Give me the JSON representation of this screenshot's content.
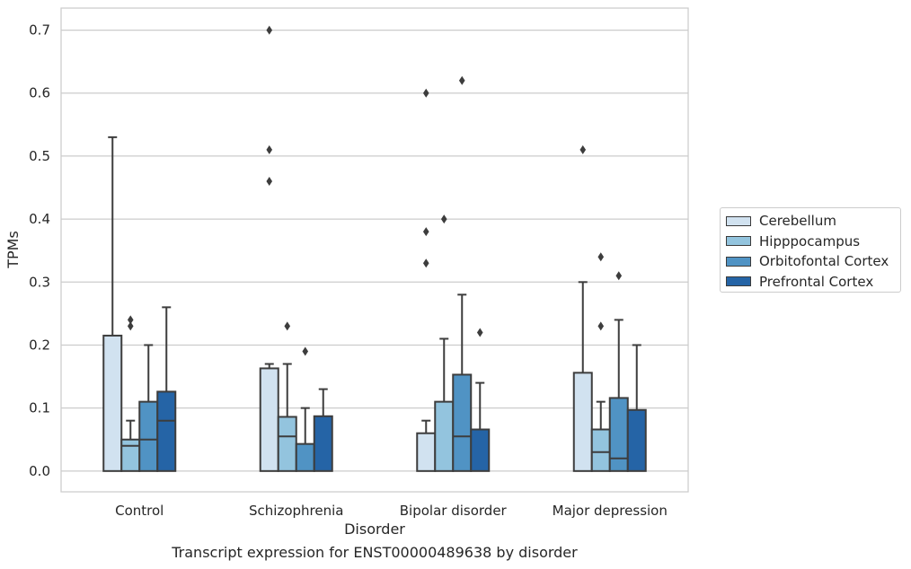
{
  "caption": "Transcript expression for ENST00000489638 by disorder",
  "chart_data": {
    "type": "box",
    "xlabel": "Disorder",
    "ylabel": "TPMs",
    "ylim": [
      -0.033,
      0.735
    ],
    "yticks": [
      "0.0",
      "0.1",
      "0.2",
      "0.3",
      "0.4",
      "0.5",
      "0.6",
      "0.7"
    ],
    "ytick_values": [
      0,
      0.1,
      0.2,
      0.3,
      0.4,
      0.5,
      0.6,
      0.7
    ],
    "grid": "horizontal",
    "legend_position": "right",
    "categories": [
      "Control",
      "Schizophrenia",
      "Bipolar disorder",
      "Major depression"
    ],
    "series": [
      {
        "name": "Cerebellum",
        "color": "#d1e2f0",
        "boxes": [
          {
            "whislo": 0,
            "q1": 0,
            "med": 0,
            "q3": 0.215,
            "whishi": 0.53,
            "fliers": []
          },
          {
            "whislo": 0,
            "q1": 0,
            "med": 0,
            "q3": 0.163,
            "whishi": 0.17,
            "fliers": [
              0.46,
              0.51,
              0.7
            ]
          },
          {
            "whislo": 0,
            "q1": 0,
            "med": 0,
            "q3": 0.06,
            "whishi": 0.08,
            "fliers": [
              0.33,
              0.38,
              0.6
            ]
          },
          {
            "whislo": 0,
            "q1": 0,
            "med": 0,
            "q3": 0.156,
            "whishi": 0.3,
            "fliers": [
              0.51
            ]
          }
        ]
      },
      {
        "name": "Hipppocampus",
        "color": "#93c4de",
        "boxes": [
          {
            "whislo": 0,
            "q1": 0,
            "med": 0.04,
            "q3": 0.05,
            "whishi": 0.08,
            "fliers": [
              0.23,
              0.24
            ]
          },
          {
            "whislo": 0,
            "q1": 0,
            "med": 0.055,
            "q3": 0.086,
            "whishi": 0.17,
            "fliers": [
              0.23
            ]
          },
          {
            "whislo": 0,
            "q1": 0,
            "med": 0,
            "q3": 0.11,
            "whishi": 0.21,
            "fliers": [
              0.4
            ]
          },
          {
            "whislo": 0,
            "q1": 0,
            "med": 0.03,
            "q3": 0.066,
            "whishi": 0.11,
            "fliers": [
              0.23,
              0.34
            ]
          }
        ]
      },
      {
        "name": "Orbitofontal Cortex",
        "color": "#5093c4",
        "boxes": [
          {
            "whislo": 0,
            "q1": 0,
            "med": 0.05,
            "q3": 0.11,
            "whishi": 0.2,
            "fliers": []
          },
          {
            "whislo": 0,
            "q1": 0,
            "med": 0,
            "q3": 0.043,
            "whishi": 0.1,
            "fliers": [
              0.19
            ]
          },
          {
            "whislo": 0,
            "q1": 0,
            "med": 0.055,
            "q3": 0.153,
            "whishi": 0.28,
            "fliers": [
              0.62
            ]
          },
          {
            "whislo": 0,
            "q1": 0,
            "med": 0.02,
            "q3": 0.116,
            "whishi": 0.24,
            "fliers": [
              0.31
            ]
          }
        ]
      },
      {
        "name": "Prefrontal Cortex",
        "color": "#2564a6",
        "boxes": [
          {
            "whislo": 0,
            "q1": 0,
            "med": 0.08,
            "q3": 0.126,
            "whishi": 0.26,
            "fliers": []
          },
          {
            "whislo": 0,
            "q1": 0,
            "med": 0,
            "q3": 0.087,
            "whishi": 0.13,
            "fliers": []
          },
          {
            "whislo": 0,
            "q1": 0,
            "med": 0,
            "q3": 0.066,
            "whishi": 0.14,
            "fliers": [
              0.22
            ]
          },
          {
            "whislo": 0,
            "q1": 0,
            "med": 0,
            "q3": 0.097,
            "whishi": 0.2,
            "fliers": []
          }
        ]
      }
    ]
  }
}
